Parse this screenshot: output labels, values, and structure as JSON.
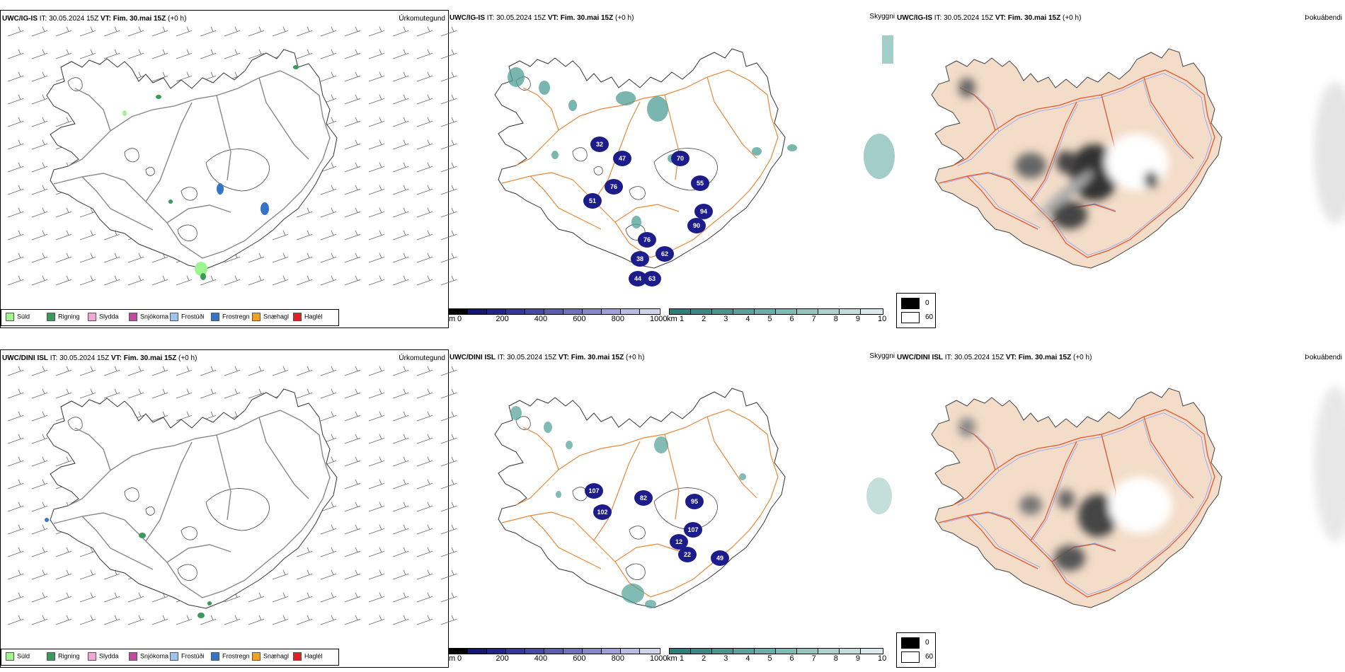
{
  "rows": [
    {
      "model": "UWC/IG-IS",
      "model_dini": false,
      "it_label": "IT:",
      "it_value": "30.05.2024 15Z",
      "vt_label": "VT:",
      "vt_value": "Fim. 30.mai 15Z",
      "offset": "(+0 h)",
      "cloud_values": [
        "32",
        "47",
        "76",
        "51",
        "70",
        "55",
        "94",
        "90",
        "76",
        "62",
        "38",
        "44",
        "63"
      ]
    },
    {
      "model": "UWC/DINI ISL",
      "it_label": "IT:",
      "it_value": "30.05.2024 15Z",
      "vt_label": "VT:",
      "vt_value": "Fim. 30.mai 15Z",
      "offset": "(+0 h)",
      "cloud_values": [
        "82",
        "107",
        "102",
        "95",
        "107",
        "12",
        "22",
        "49"
      ]
    }
  ],
  "panel_titles": {
    "precip": "Úrkomutegund",
    "cloud": "Skyggni",
    "fog": "Þokuábendi"
  },
  "precip_legend": [
    {
      "label": "Súld",
      "color": "#9ef58f"
    },
    {
      "label": "Rigning",
      "color": "#3a9a5a"
    },
    {
      "label": "Slydda",
      "color": "#f2a6d6"
    },
    {
      "label": "Snjókoma",
      "color": "#c04aa0"
    },
    {
      "label": "Frostúði",
      "color": "#9ec4f0"
    },
    {
      "label": "Frostregn",
      "color": "#3575c8"
    },
    {
      "label": "Snæhagl",
      "color": "#f0a020"
    },
    {
      "label": "Haglél",
      "color": "#e02020"
    }
  ],
  "ceiling_scale": {
    "unit": "m",
    "ticks": [
      "0",
      "200",
      "400",
      "600",
      "800",
      "1000"
    ],
    "colors": [
      "#000000",
      "#151575",
      "#22228f",
      "#3535a0",
      "#4848aa",
      "#5c5cb3",
      "#7070bd",
      "#8787c8",
      "#a0a0d4",
      "#bbbbe0",
      "#d2d2ec"
    ]
  },
  "visibility_scale": {
    "unit": "km",
    "ticks": [
      "1",
      "2",
      "3",
      "4",
      "5",
      "6",
      "7",
      "8",
      "9",
      "10"
    ],
    "colors": [
      "#2e7f78",
      "#3c8a83",
      "#4c958e",
      "#5ea19a",
      "#70aca6",
      "#84b8b2",
      "#98c4bf",
      "#aed1cc",
      "#c4ddda",
      "#dbeae8"
    ]
  },
  "fog_legend": [
    {
      "label": "0",
      "color": "#000000"
    },
    {
      "label": "60",
      "color": "#ffffff"
    }
  ],
  "colors": {
    "land_fog": "#f3dcc8",
    "roads": "#e8883a",
    "roads_fog": "#e05a30",
    "rivers": "#8a9ef5",
    "wind_barb": "#666666",
    "low_cloud": "#1c1c8a",
    "vis_teal": "#4e9e96"
  }
}
